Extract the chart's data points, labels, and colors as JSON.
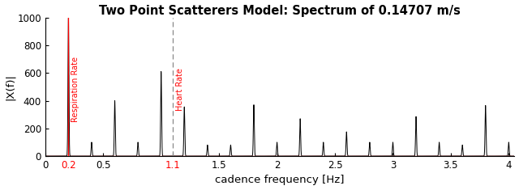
{
  "title": "Two Point Scatterers Model: Spectrum of 0.14707 m/s",
  "xlabel": "cadence frequency [Hz]",
  "ylabel": "|X(f)|",
  "xlim": [
    0,
    4.05
  ],
  "ylim": [
    0,
    1000
  ],
  "resp_rate": 0.2,
  "heart_rate": 1.1,
  "background_color": "#ffffff",
  "line_color": "#000000",
  "resp_color": "#ff0000",
  "heart_color": "#ff0000",
  "heart_line_color": "#888888",
  "title_fontsize": 10.5,
  "label_fontsize": 9.5,
  "tick_fontsize": 8.5,
  "xticks": [
    0,
    0.2,
    0.5,
    1.1,
    1.5,
    2.0,
    2.5,
    3.0,
    3.5,
    4.0
  ],
  "xtick_labels": [
    "0",
    "0.2",
    "0.5",
    "1.1",
    "1.5",
    "2",
    "2.5",
    "3",
    "3.5",
    "4"
  ],
  "xtick_colors": [
    "black",
    "red",
    "black",
    "red",
    "black",
    "black",
    "black",
    "black",
    "black",
    "black"
  ],
  "yticks": [
    0,
    200,
    400,
    600,
    800,
    1000
  ],
  "peak_data": [
    [
      0.2,
      1000
    ],
    [
      0.4,
      100
    ],
    [
      0.6,
      400
    ],
    [
      0.8,
      100
    ],
    [
      1.0,
      610
    ],
    [
      1.2,
      355
    ],
    [
      1.4,
      80
    ],
    [
      1.6,
      80
    ],
    [
      1.8,
      370
    ],
    [
      2.0,
      100
    ],
    [
      2.2,
      270
    ],
    [
      2.4,
      100
    ],
    [
      2.6,
      175
    ],
    [
      2.8,
      100
    ],
    [
      3.0,
      100
    ],
    [
      3.2,
      285
    ],
    [
      3.4,
      100
    ],
    [
      3.6,
      80
    ],
    [
      3.8,
      365
    ],
    [
      4.0,
      100
    ]
  ],
  "sigma": 0.004,
  "figsize": [
    6.4,
    2.35
  ],
  "dpi": 100
}
